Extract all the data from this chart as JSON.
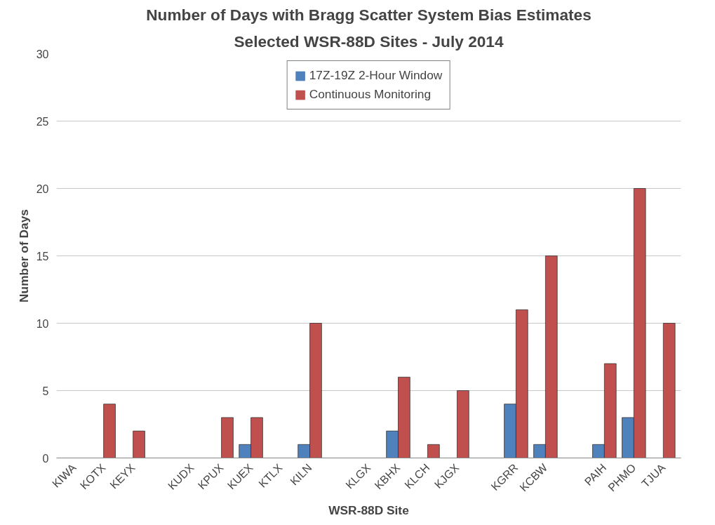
{
  "chart_data": {
    "type": "bar",
    "title": "Number of Days with Bragg Scatter System Bias Estimates",
    "subtitle": "Selected WSR-88D Sites - July 2014",
    "xlabel": "WSR-88D Site",
    "ylabel": "Number of Days",
    "categories": [
      "KIWA",
      "KOTX",
      "KEYX",
      null,
      "KUDX",
      "KPUX",
      "KUEX",
      "KTLX",
      "KILN",
      null,
      "KLGX",
      "KBHX",
      "KLCH",
      "KJGX",
      null,
      "KGRR",
      "KCBW",
      null,
      "PAIH",
      "PHMO",
      "TJUA"
    ],
    "series": [
      {
        "name": "17Z-19Z 2-Hour Window",
        "color": "#4f81bd",
        "values": [
          0,
          0,
          0,
          null,
          0,
          0,
          1,
          0,
          1,
          null,
          0,
          2,
          0,
          0,
          null,
          4,
          1,
          null,
          1,
          3,
          0
        ]
      },
      {
        "name": "Continuous Monitoring",
        "color": "#c0504d",
        "values": [
          0,
          4,
          2,
          null,
          0,
          3,
          3,
          0,
          10,
          null,
          0,
          6,
          1,
          5,
          null,
          11,
          15,
          null,
          7,
          20,
          10
        ]
      }
    ],
    "ylim": [
      0,
      30
    ],
    "yticks": [
      0,
      5,
      10,
      15,
      20,
      25,
      30
    ],
    "grid": "y",
    "legend": "top"
  }
}
